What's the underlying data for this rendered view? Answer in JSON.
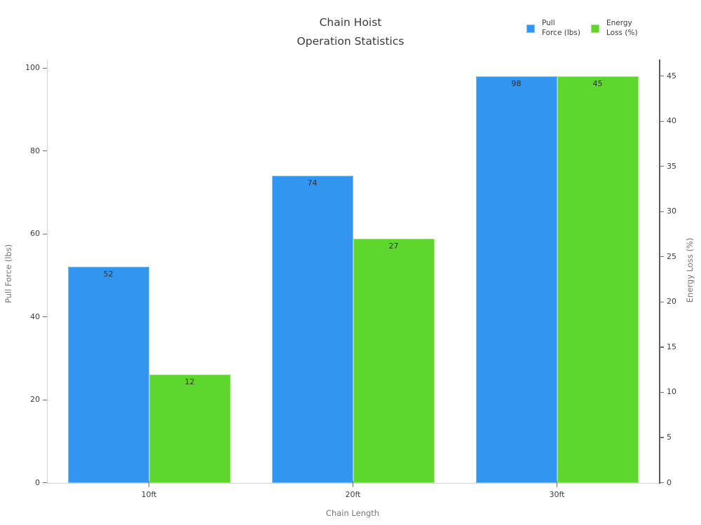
{
  "chart_data": {
    "type": "bar",
    "title_lines": [
      "Chain Hoist",
      "Operation Statistics"
    ],
    "title": "Chain Hoist Operation Statistics",
    "categories": [
      "10ft",
      "20ft",
      "30ft"
    ],
    "series": [
      {
        "name": "Pull Force (lbs)",
        "legend_lines": [
          "Pull",
          "Force (lbs)"
        ],
        "axis": "left",
        "color": "#3295f0",
        "edge_color": "#85c3f7",
        "values": [
          52,
          74,
          98
        ]
      },
      {
        "name": "Energy Loss (%)",
        "legend_lines": [
          "Energy",
          "Loss (%)"
        ],
        "axis": "right",
        "color": "#5dd62d",
        "edge_color": "#a2e67e",
        "values": [
          12,
          27,
          45
        ]
      }
    ],
    "xlabel": "Chain Length",
    "ylabel_left": "Pull Force (lbs)",
    "ylabel_right": "Energy Loss (%)",
    "left_axis": {
      "ticks": [
        0,
        20,
        40,
        60,
        80,
        100
      ],
      "range": [
        0,
        102
      ]
    },
    "right_axis": {
      "ticks": [
        0,
        5,
        10,
        15,
        20,
        25,
        30,
        35,
        40,
        45
      ],
      "range": [
        0,
        46.5
      ]
    },
    "legend_position": "top-right",
    "grid": false,
    "colors": {
      "tick_text": "#3c3c3c",
      "axis_title_text": "#757575",
      "light_spine": "#d4d4d4",
      "dark_spine": "#5a5a5a"
    }
  }
}
